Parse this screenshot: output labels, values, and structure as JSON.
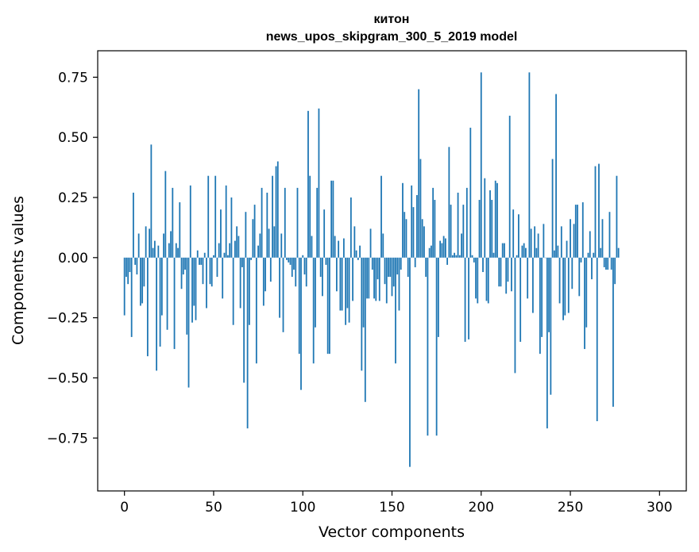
{
  "chart_data": {
    "type": "bar",
    "title_line1": "китон",
    "title_line2": "news_upos_skipgram_300_5_2019 model",
    "xlabel": "Vector components",
    "ylabel": "Components values",
    "xlim": [
      -15,
      315
    ],
    "ylim": [
      -0.97,
      0.86
    ],
    "xticks": [
      0,
      50,
      100,
      150,
      200,
      250,
      300
    ],
    "xtick_labels": [
      "0",
      "50",
      "100",
      "150",
      "200",
      "250",
      "300"
    ],
    "yticks": [
      -0.75,
      -0.5,
      -0.25,
      0.0,
      0.25,
      0.5,
      0.75
    ],
    "ytick_labels": [
      "−0.75",
      "−0.50",
      "−0.25",
      "0.00",
      "0.25",
      "0.50",
      "0.75"
    ],
    "bar_color": "#1f77b4",
    "values": [
      -0.24,
      -0.08,
      -0.11,
      -0.06,
      -0.33,
      0.27,
      -0.03,
      -0.07,
      0.1,
      -0.2,
      -0.19,
      -0.12,
      0.13,
      -0.41,
      0.12,
      0.47,
      0.04,
      0.07,
      -0.47,
      0.05,
      -0.37,
      -0.24,
      0.1,
      0.36,
      -0.3,
      0.06,
      0.11,
      0.29,
      -0.38,
      0.06,
      0.04,
      0.23,
      -0.13,
      -0.07,
      -0.05,
      -0.32,
      -0.54,
      0.3,
      -0.27,
      -0.2,
      -0.26,
      0.03,
      -0.03,
      -0.03,
      -0.11,
      0.02,
      -0.21,
      0.34,
      -0.11,
      -0.12,
      0.01,
      0.34,
      -0.08,
      0.06,
      0.2,
      -0.17,
      0.02,
      0.3,
      0.01,
      0.06,
      0.25,
      -0.28,
      0.07,
      0.13,
      0.09,
      -0.21,
      -0.04,
      -0.52,
      0.19,
      -0.71,
      -0.28,
      -0.01,
      0.16,
      0.22,
      -0.44,
      0.05,
      0.1,
      0.29,
      -0.2,
      -0.14,
      0.27,
      0.12,
      -0.1,
      0.34,
      0.13,
      0.38,
      0.4,
      -0.25,
      0.1,
      -0.31,
      0.29,
      -0.01,
      -0.02,
      -0.03,
      -0.08,
      -0.05,
      -0.12,
      0.29,
      -0.4,
      -0.55,
      0.01,
      -0.07,
      -0.12,
      0.61,
      0.34,
      0.09,
      -0.44,
      -0.29,
      0.29,
      0.62,
      -0.08,
      -0.16,
      0.2,
      -0.03,
      -0.4,
      -0.4,
      0.32,
      0.32,
      0.09,
      -0.14,
      0.07,
      -0.22,
      -0.22,
      0.08,
      -0.28,
      -0.21,
      -0.27,
      0.25,
      -0.18,
      0.13,
      0.03,
      -0.01,
      0.05,
      -0.47,
      -0.29,
      -0.6,
      -0.17,
      -0.17,
      0.12,
      -0.05,
      -0.17,
      -0.18,
      -0.09,
      -0.18,
      0.34,
      0.1,
      -0.11,
      -0.19,
      -0.08,
      -0.08,
      -0.16,
      -0.12,
      -0.44,
      -0.07,
      -0.22,
      -0.05,
      0.31,
      0.19,
      0.16,
      -0.08,
      -0.87,
      0.3,
      0.21,
      -0.04,
      0.26,
      0.7,
      0.41,
      0.16,
      0.13,
      -0.08,
      -0.74,
      0.04,
      0.05,
      0.29,
      0.24,
      -0.74,
      -0.33,
      0.07,
      0.06,
      0.09,
      0.08,
      -0.03,
      0.46,
      0.22,
      0.01,
      0.02,
      0.01,
      0.27,
      0.01,
      0.1,
      0.22,
      -0.35,
      0.29,
      -0.34,
      0.54,
      0.01,
      -0.02,
      -0.17,
      -0.19,
      0.24,
      0.77,
      -0.06,
      0.33,
      -0.18,
      -0.19,
      0.28,
      0.24,
      0.02,
      0.32,
      0.31,
      -0.12,
      -0.12,
      0.06,
      0.06,
      -0.15,
      -0.1,
      0.59,
      -0.14,
      0.2,
      -0.48,
      0.01,
      0.18,
      -0.35,
      0.05,
      0.06,
      0.04,
      -0.17,
      0.77,
      0.12,
      -0.23,
      0.13,
      0.04,
      0.1,
      -0.4,
      -0.33,
      0.14,
      0.0,
      -0.71,
      -0.31,
      -0.57,
      0.41,
      0.03,
      0.68,
      0.05,
      -0.19,
      0.13,
      -0.26,
      -0.24,
      0.07,
      -0.23,
      0.16,
      -0.13,
      0.14,
      0.22,
      0.22,
      -0.16,
      -0.02,
      0.23,
      -0.38,
      -0.29,
      0.02,
      0.11,
      -0.09,
      0.02,
      0.38,
      -0.68,
      0.39,
      0.04,
      0.16,
      -0.04,
      -0.05,
      -0.05,
      0.19,
      -0.05,
      -0.62,
      -0.11,
      0.34,
      0.04
    ]
  }
}
